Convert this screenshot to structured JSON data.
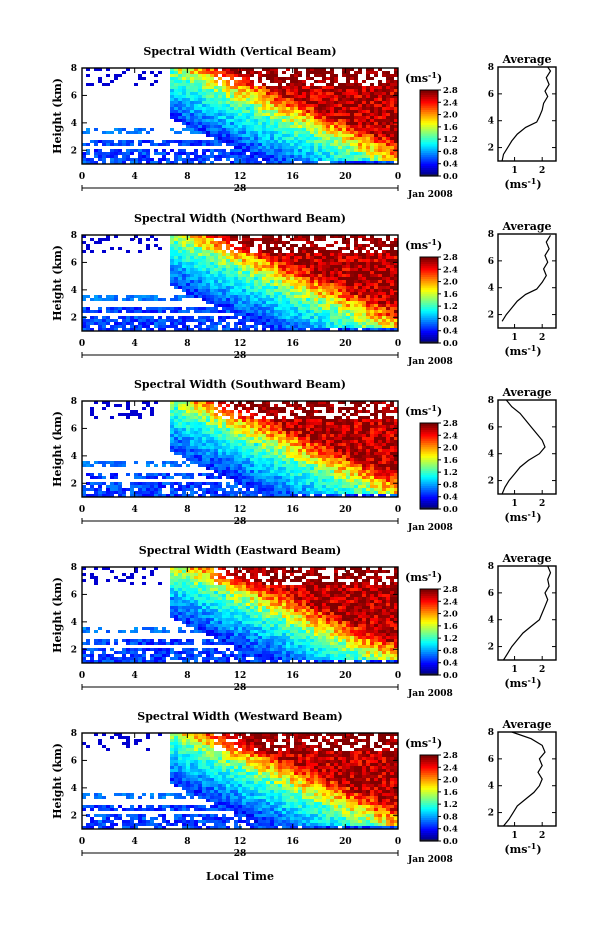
{
  "figure": {
    "xlabel": "Local Time",
    "date_label": "Jan 2008",
    "day_label": "28",
    "unit_label": "(ms",
    "unit_exp": "-1"
  },
  "chart_data": [
    {
      "type": "heatmap",
      "title": "Spectral Width (Vertical Beam)",
      "ylabel": "Height (km)",
      "x_ticks": [
        "0",
        "4",
        "8",
        "12",
        "16",
        "20",
        "0"
      ],
      "y_ticks": [
        "2",
        "4",
        "6",
        "8"
      ],
      "xlim": [
        0,
        24
      ],
      "ylim": [
        1,
        8
      ],
      "colorbar": {
        "ticks": [
          "0.0",
          "0.4",
          "0.8",
          "1.2",
          "1.6",
          "2.0",
          "2.4",
          "2.8"
        ],
        "range": [
          0.0,
          2.8
        ]
      },
      "average": {
        "title": "Average",
        "xlabel": "(ms",
        "x_ticks": [
          "1",
          "2"
        ],
        "xlim": [
          0.4,
          2.5
        ],
        "y_ticks": [
          "2",
          "4",
          "6",
          "8"
        ],
        "profile": [
          [
            0.55,
            1.0
          ],
          [
            0.6,
            1.5
          ],
          [
            0.75,
            2.0
          ],
          [
            0.9,
            2.5
          ],
          [
            1.1,
            3.0
          ],
          [
            1.4,
            3.5
          ],
          [
            1.8,
            3.9
          ],
          [
            1.9,
            4.3
          ],
          [
            2.0,
            4.8
          ],
          [
            2.05,
            5.3
          ],
          [
            2.2,
            5.8
          ],
          [
            2.1,
            6.2
          ],
          [
            2.25,
            6.7
          ],
          [
            2.15,
            7.2
          ],
          [
            2.3,
            7.7
          ],
          [
            2.2,
            8.0
          ]
        ]
      }
    },
    {
      "type": "heatmap",
      "title": "Spectral Width (Northward Beam)",
      "ylabel": "Height (km)",
      "x_ticks": [
        "0",
        "4",
        "8",
        "12",
        "16",
        "20",
        "0"
      ],
      "y_ticks": [
        "2",
        "4",
        "6",
        "8"
      ],
      "xlim": [
        0,
        24
      ],
      "ylim": [
        1,
        8
      ],
      "colorbar": {
        "ticks": [
          "0.0",
          "0.4",
          "0.8",
          "1.2",
          "1.6",
          "2.0",
          "2.4",
          "2.8"
        ],
        "range": [
          0.0,
          2.8
        ]
      },
      "average": {
        "title": "Average",
        "xlabel": "(ms",
        "x_ticks": [
          "1",
          "2"
        ],
        "xlim": [
          0.4,
          2.5
        ],
        "y_ticks": [
          "2",
          "4",
          "6",
          "8"
        ],
        "profile": [
          [
            0.55,
            1.5
          ],
          [
            0.7,
            2.0
          ],
          [
            0.9,
            2.5
          ],
          [
            1.1,
            3.0
          ],
          [
            1.4,
            3.5
          ],
          [
            1.8,
            3.9
          ],
          [
            2.0,
            4.4
          ],
          [
            2.15,
            4.9
          ],
          [
            2.05,
            5.4
          ],
          [
            2.2,
            5.9
          ],
          [
            2.1,
            6.4
          ],
          [
            2.25,
            6.9
          ],
          [
            2.15,
            7.4
          ],
          [
            2.3,
            7.9
          ]
        ]
      }
    },
    {
      "type": "heatmap",
      "title": "Spectral Width (Southward Beam)",
      "ylabel": "Height (km)",
      "x_ticks": [
        "0",
        "4",
        "8",
        "12",
        "16",
        "20",
        "0"
      ],
      "y_ticks": [
        "2",
        "4",
        "6",
        "8"
      ],
      "xlim": [
        0,
        24
      ],
      "ylim": [
        1,
        8
      ],
      "colorbar": {
        "ticks": [
          "0.0",
          "0.4",
          "0.8",
          "1.2",
          "1.6",
          "2.0",
          "2.4",
          "2.8"
        ],
        "range": [
          0.0,
          2.8
        ]
      },
      "average": {
        "title": "Average",
        "xlabel": "(ms",
        "x_ticks": [
          "1",
          "2"
        ],
        "xlim": [
          0.4,
          2.5
        ],
        "y_ticks": [
          "2",
          "4",
          "6",
          "8"
        ],
        "profile": [
          [
            0.55,
            1.0
          ],
          [
            0.65,
            1.5
          ],
          [
            0.8,
            2.0
          ],
          [
            1.0,
            2.5
          ],
          [
            1.2,
            3.0
          ],
          [
            1.5,
            3.5
          ],
          [
            1.9,
            4.0
          ],
          [
            2.1,
            4.5
          ],
          [
            2.0,
            5.0
          ],
          [
            1.8,
            5.5
          ],
          [
            1.6,
            6.0
          ],
          [
            1.4,
            6.5
          ],
          [
            1.2,
            7.0
          ],
          [
            0.9,
            7.5
          ],
          [
            0.7,
            8.0
          ]
        ]
      }
    },
    {
      "type": "heatmap",
      "title": "Spectral Width (Eastward Beam)",
      "ylabel": "Height (km)",
      "x_ticks": [
        "0",
        "4",
        "8",
        "12",
        "16",
        "20",
        "0"
      ],
      "y_ticks": [
        "2",
        "4",
        "6",
        "8"
      ],
      "xlim": [
        0,
        24
      ],
      "ylim": [
        1,
        8
      ],
      "colorbar": {
        "ticks": [
          "0.0",
          "0.4",
          "0.8",
          "1.2",
          "1.6",
          "2.0",
          "2.4",
          "2.8"
        ],
        "range": [
          0.0,
          2.8
        ]
      },
      "average": {
        "title": "Average",
        "xlabel": "(ms",
        "x_ticks": [
          "1",
          "2"
        ],
        "xlim": [
          0.4,
          2.5
        ],
        "y_ticks": [
          "2",
          "4",
          "6",
          "8"
        ],
        "profile": [
          [
            0.6,
            1.0
          ],
          [
            0.75,
            1.5
          ],
          [
            0.9,
            2.0
          ],
          [
            1.1,
            2.5
          ],
          [
            1.3,
            3.0
          ],
          [
            1.6,
            3.5
          ],
          [
            1.9,
            4.0
          ],
          [
            2.0,
            4.5
          ],
          [
            2.1,
            5.0
          ],
          [
            2.2,
            5.5
          ],
          [
            2.1,
            6.0
          ],
          [
            2.25,
            6.5
          ],
          [
            2.2,
            7.0
          ],
          [
            2.3,
            7.5
          ],
          [
            2.2,
            8.0
          ]
        ]
      }
    },
    {
      "type": "heatmap",
      "title": "Spectral Width (Westward Beam)",
      "ylabel": "Height (km)",
      "x_ticks": [
        "0",
        "4",
        "8",
        "12",
        "16",
        "20",
        "0"
      ],
      "y_ticks": [
        "2",
        "4",
        "6",
        "8"
      ],
      "xlim": [
        0,
        24
      ],
      "ylim": [
        1,
        8
      ],
      "colorbar": {
        "ticks": [
          "0.0",
          "0.4",
          "0.8",
          "1.2",
          "1.6",
          "2.0",
          "2.4",
          "2.8"
        ],
        "range": [
          0.0,
          2.8
        ]
      },
      "average": {
        "title": "Average",
        "xlabel": "(ms",
        "x_ticks": [
          "1",
          "2"
        ],
        "xlim": [
          0.4,
          2.5
        ],
        "y_ticks": [
          "2",
          "4",
          "6",
          "8"
        ],
        "profile": [
          [
            0.6,
            1.0
          ],
          [
            0.8,
            1.5
          ],
          [
            0.95,
            2.0
          ],
          [
            1.1,
            2.5
          ],
          [
            1.4,
            3.0
          ],
          [
            1.7,
            3.5
          ],
          [
            1.9,
            4.0
          ],
          [
            2.0,
            4.5
          ],
          [
            1.85,
            5.0
          ],
          [
            2.0,
            5.5
          ],
          [
            1.9,
            6.0
          ],
          [
            2.1,
            6.5
          ],
          [
            2.0,
            7.0
          ],
          [
            1.6,
            7.5
          ],
          [
            0.9,
            8.0
          ]
        ]
      }
    }
  ]
}
